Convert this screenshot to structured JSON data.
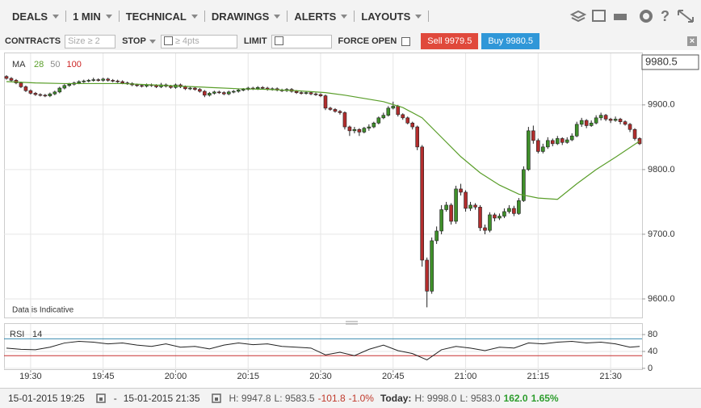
{
  "toolbar": {
    "menus": [
      "DEALS",
      "1 MIN",
      "TECHNICAL",
      "DRAWINGS",
      "ALERTS",
      "LAYOUTS"
    ]
  },
  "order_bar": {
    "contracts_label": "CONTRACTS",
    "contracts_placeholder": "Size ≥ 2",
    "stop_label": "STOP",
    "stop_placeholder": "≥ 4pts",
    "limit_label": "LIMIT",
    "force_open_label": "FORCE OPEN",
    "sell_button": "Sell 9979.5",
    "buy_button": "Buy 9980.5"
  },
  "chart_data": [
    {
      "type": "candlestick",
      "indicator": "MA",
      "annotation": "Data is Indicative",
      "last_price": "9980.5",
      "up_color": "#3f8f2a",
      "down_color": "#b22d2d",
      "xlim": [
        -0.5,
        131.5
      ],
      "ylim": [
        9570,
        9981
      ],
      "yticks": [
        {
          "value": 9600,
          "label": "9600.0"
        },
        {
          "value": 9700,
          "label": "9700.0"
        },
        {
          "value": 9800,
          "label": "9800.0"
        },
        {
          "value": 9900,
          "label": "9900.0"
        }
      ],
      "series": [
        {
          "name": "28",
          "color": "#5a9e2a",
          "x": [
            0,
            6,
            12,
            18,
            24,
            30,
            36,
            42,
            48,
            54,
            60,
            66,
            70,
            74,
            78,
            82,
            86,
            90,
            94,
            98,
            102,
            106,
            110,
            114,
            118,
            122,
            126,
            131
          ],
          "values": [
            9936,
            9934,
            9933,
            9933,
            9933,
            9931,
            9929,
            9927,
            9925,
            9924,
            9922,
            9919,
            9915,
            9910,
            9905,
            9896,
            9880,
            9850,
            9820,
            9795,
            9776,
            9762,
            9756,
            9754,
            9778,
            9800,
            9819,
            9844
          ]
        },
        {
          "name": "50",
          "color": "#8a8a8a"
        },
        {
          "name": "100",
          "color": "#cc2222"
        }
      ],
      "ohlc": [
        [
          9944,
          9946,
          9939,
          9941
        ],
        [
          9941,
          9943,
          9936,
          9938
        ],
        [
          9938,
          9940,
          9932,
          9934
        ],
        [
          9934,
          9936,
          9926,
          9928
        ],
        [
          9928,
          9930,
          9920,
          9922
        ],
        [
          9922,
          9924,
          9916,
          9918
        ],
        [
          9918,
          9920,
          9914,
          9916
        ],
        [
          9916,
          9918,
          9913,
          9915
        ],
        [
          9915,
          9917,
          9912,
          9914
        ],
        [
          9914,
          9919,
          9912,
          9917
        ],
        [
          9917,
          9922,
          9915,
          9920
        ],
        [
          9920,
          9928,
          9918,
          9926
        ],
        [
          9926,
          9932,
          9924,
          9930
        ],
        [
          9930,
          9934,
          9928,
          9932
        ],
        [
          9932,
          9936,
          9930,
          9934
        ],
        [
          9934,
          9938,
          9932,
          9936
        ],
        [
          9936,
          9939,
          9934,
          9937
        ],
        [
          9937,
          9940,
          9935,
          9938
        ],
        [
          9938,
          9942,
          9936,
          9939
        ],
        [
          9939,
          9941,
          9936,
          9938
        ],
        [
          9938,
          9942,
          9936,
          9940
        ],
        [
          9940,
          9942,
          9936,
          9938
        ],
        [
          9938,
          9940,
          9935,
          9937
        ],
        [
          9937,
          9939,
          9934,
          9936
        ],
        [
          9936,
          9938,
          9932,
          9934
        ],
        [
          9934,
          9936,
          9931,
          9933
        ],
        [
          9933,
          9935,
          9929,
          9931
        ],
        [
          9931,
          9933,
          9928,
          9930
        ],
        [
          9930,
          9932,
          9927,
          9929
        ],
        [
          9929,
          9933,
          9927,
          9931
        ],
        [
          9931,
          9933,
          9928,
          9930
        ],
        [
          9930,
          9932,
          9926,
          9928
        ],
        [
          9928,
          9934,
          9926,
          9931
        ],
        [
          9931,
          9933,
          9927,
          9929
        ],
        [
          9929,
          9931,
          9925,
          9927
        ],
        [
          9927,
          9933,
          9925,
          9931
        ],
        [
          9931,
          9933,
          9926,
          9928
        ],
        [
          9928,
          9930,
          9923,
          9925
        ],
        [
          9925,
          9928,
          9923,
          9926
        ],
        [
          9926,
          9928,
          9922,
          9924
        ],
        [
          9924,
          9926,
          9919,
          9921
        ],
        [
          9921,
          9923,
          9912,
          9915
        ],
        [
          9915,
          9920,
          9913,
          9918
        ],
        [
          9918,
          9922,
          9916,
          9920
        ],
        [
          9920,
          9922,
          9917,
          9919
        ],
        [
          9919,
          9921,
          9915,
          9917
        ],
        [
          9917,
          9922,
          9915,
          9920
        ],
        [
          9920,
          9923,
          9918,
          9921
        ],
        [
          9921,
          9925,
          9919,
          9923
        ],
        [
          9923,
          9926,
          9921,
          9924
        ],
        [
          9924,
          9928,
          9922,
          9926
        ],
        [
          9926,
          9928,
          9923,
          9925
        ],
        [
          9925,
          9929,
          9923,
          9927
        ],
        [
          9927,
          9929,
          9924,
          9926
        ],
        [
          9926,
          9928,
          9922,
          9924
        ],
        [
          9924,
          9927,
          9922,
          9925
        ],
        [
          9925,
          9927,
          9921,
          9923
        ],
        [
          9923,
          9925,
          9920,
          9922
        ],
        [
          9922,
          9926,
          9920,
          9924
        ],
        [
          9924,
          9926,
          9919,
          9921
        ],
        [
          9921,
          9923,
          9917,
          9919
        ],
        [
          9919,
          9921,
          9916,
          9918
        ],
        [
          9918,
          9921,
          9916,
          9919
        ],
        [
          9919,
          9921,
          9915,
          9917
        ],
        [
          9917,
          9919,
          9914,
          9916
        ],
        [
          9916,
          9918,
          9912,
          9914
        ],
        [
          9914,
          9916,
          9892,
          9895
        ],
        [
          9895,
          9897,
          9891,
          9893
        ],
        [
          9893,
          9895,
          9888,
          9890
        ],
        [
          9890,
          9892,
          9885,
          9888
        ],
        [
          9888,
          9890,
          9862,
          9866
        ],
        [
          9866,
          9868,
          9852,
          9860
        ],
        [
          9860,
          9866,
          9856,
          9862
        ],
        [
          9862,
          9864,
          9852,
          9858
        ],
        [
          9858,
          9866,
          9856,
          9864
        ],
        [
          9864,
          9870,
          9860,
          9866
        ],
        [
          9866,
          9874,
          9864,
          9872
        ],
        [
          9872,
          9882,
          9870,
          9880
        ],
        [
          9880,
          9888,
          9878,
          9884
        ],
        [
          9884,
          9898,
          9882,
          9895
        ],
        [
          9895,
          9905,
          9893,
          9898
        ],
        [
          9898,
          9900,
          9882,
          9885
        ],
        [
          9885,
          9887,
          9877,
          9880
        ],
        [
          9880,
          9882,
          9870,
          9872
        ],
        [
          9872,
          9874,
          9862,
          9866
        ],
        [
          9866,
          9868,
          9830,
          9835
        ],
        [
          9835,
          9838,
          9650,
          9660
        ],
        [
          9660,
          9664,
          9587,
          9612
        ],
        [
          9612,
          9695,
          9608,
          9690
        ],
        [
          9690,
          9712,
          9685,
          9705
        ],
        [
          9705,
          9745,
          9700,
          9738
        ],
        [
          9738,
          9750,
          9735,
          9745
        ],
        [
          9745,
          9748,
          9715,
          9720
        ],
        [
          9720,
          9775,
          9716,
          9770
        ],
        [
          9770,
          9778,
          9760,
          9765
        ],
        [
          9765,
          9768,
          9735,
          9740
        ],
        [
          9740,
          9750,
          9736,
          9745
        ],
        [
          9745,
          9748,
          9738,
          9742
        ],
        [
          9742,
          9745,
          9705,
          9710
        ],
        [
          9710,
          9715,
          9700,
          9706
        ],
        [
          9706,
          9734,
          9703,
          9730
        ],
        [
          9730,
          9733,
          9720,
          9725
        ],
        [
          9725,
          9732,
          9722,
          9728
        ],
        [
          9728,
          9740,
          9725,
          9735
        ],
        [
          9735,
          9745,
          9732,
          9740
        ],
        [
          9740,
          9744,
          9728,
          9732
        ],
        [
          9732,
          9756,
          9730,
          9752
        ],
        [
          9752,
          9805,
          9750,
          9800
        ],
        [
          9800,
          9866,
          9798,
          9860
        ],
        [
          9860,
          9868,
          9840,
          9845
        ],
        [
          9845,
          9848,
          9825,
          9828
        ],
        [
          9828,
          9840,
          9825,
          9835
        ],
        [
          9835,
          9850,
          9832,
          9845
        ],
        [
          9845,
          9848,
          9836,
          9840
        ],
        [
          9840,
          9852,
          9838,
          9848
        ],
        [
          9848,
          9850,
          9838,
          9842
        ],
        [
          9842,
          9850,
          9840,
          9846
        ],
        [
          9846,
          9856,
          9844,
          9852
        ],
        [
          9852,
          9874,
          9850,
          9870
        ],
        [
          9870,
          9880,
          9866,
          9876
        ],
        [
          9876,
          9878,
          9864,
          9868
        ],
        [
          9868,
          9876,
          9866,
          9872
        ],
        [
          9872,
          9884,
          9870,
          9880
        ],
        [
          9880,
          9888,
          9876,
          9884
        ],
        [
          9884,
          9886,
          9875,
          9878
        ],
        [
          9878,
          9880,
          9872,
          9876
        ],
        [
          9876,
          9882,
          9874,
          9878
        ],
        [
          9878,
          9880,
          9870,
          9874
        ],
        [
          9874,
          9876,
          9868,
          9870
        ],
        [
          9870,
          9872,
          9858,
          9862
        ],
        [
          9862,
          9864,
          9845,
          9848
        ],
        [
          9848,
          9850,
          9838,
          9840
        ]
      ]
    },
    {
      "type": "line",
      "title": "RSI",
      "period": "14",
      "xlim": [
        -0.5,
        131.5
      ],
      "ylim": [
        -4,
        107
      ],
      "yticks": [
        0,
        40,
        80
      ],
      "xticks": [
        {
          "value": 5,
          "label": "19:30"
        },
        {
          "value": 20,
          "label": "19:45"
        },
        {
          "value": 35,
          "label": "20:00"
        },
        {
          "value": 50,
          "label": "20:15"
        },
        {
          "value": 65,
          "label": "20:30"
        },
        {
          "value": 80,
          "label": "20:45"
        },
        {
          "value": 95,
          "label": "21:00"
        },
        {
          "value": 110,
          "label": "21:15"
        },
        {
          "value": 125,
          "label": "21:30"
        }
      ],
      "levels": [
        {
          "value": 70,
          "color": "#3b8bb0"
        },
        {
          "value": 30,
          "color": "#c83030"
        }
      ],
      "series": [
        {
          "color": "#222222",
          "x": [
            0,
            3,
            6,
            9,
            12,
            15,
            18,
            21,
            24,
            27,
            30,
            33,
            36,
            39,
            42,
            45,
            48,
            51,
            54,
            57,
            60,
            63,
            66,
            69,
            72,
            75,
            78,
            81,
            84,
            87,
            90,
            93,
            96,
            99,
            102,
            105,
            108,
            111,
            114,
            117,
            120,
            123,
            126,
            129,
            131
          ],
          "values": [
            48,
            45,
            44,
            50,
            60,
            64,
            62,
            58,
            60,
            55,
            52,
            58,
            50,
            52,
            46,
            55,
            60,
            56,
            58,
            52,
            50,
            48,
            32,
            38,
            30,
            45,
            55,
            42,
            35,
            20,
            44,
            52,
            48,
            42,
            50,
            48,
            60,
            58,
            62,
            64,
            60,
            62,
            58,
            50,
            52
          ]
        }
      ]
    }
  ],
  "footer": {
    "from": "15-01-2015 19:25",
    "separator": "-",
    "to": "15-01-2015 21:35",
    "range_high": "H: 9947.8",
    "range_low": "L: 9583.5",
    "change": "-101.8",
    "change_pct": "-1.0%",
    "today_label": "Today:",
    "today_high": "H: 9998.0",
    "today_low": "L: 9583.0",
    "today_change": "162.0",
    "today_change_pct": "1.65%"
  }
}
